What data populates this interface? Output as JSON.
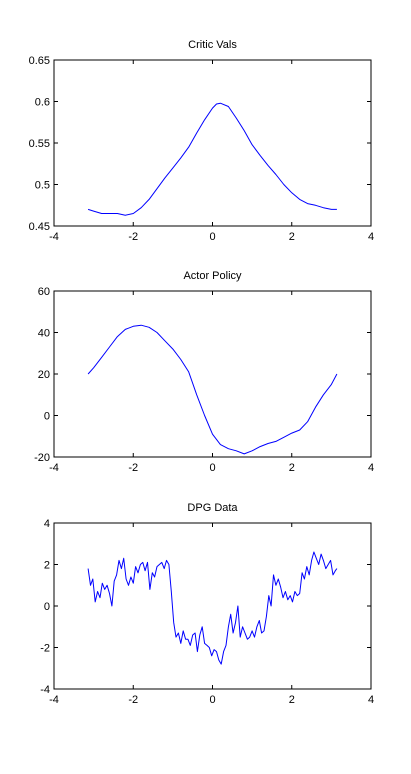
{
  "chart_data": [
    {
      "type": "line",
      "title": "Critic Vals",
      "xlim": [
        -4,
        4
      ],
      "ylim": [
        0.45,
        0.65
      ],
      "xticks": [
        -4,
        -2,
        0,
        2,
        4
      ],
      "xtick_labels": [
        "-4",
        "-2",
        "0",
        "2",
        "4"
      ],
      "yticks": [
        0.45,
        0.5,
        0.55,
        0.6,
        0.65
      ],
      "ytick_labels": [
        "0.45",
        "0.5",
        "0.55",
        "0.6",
        "0.65"
      ],
      "grid": false,
      "color": "#0000ff",
      "series": [
        {
          "x": [
            -3.14,
            -3.0,
            -2.8,
            -2.6,
            -2.4,
            -2.2,
            -2.0,
            -1.8,
            -1.6,
            -1.4,
            -1.2,
            -1.0,
            -0.8,
            -0.6,
            -0.4,
            -0.2,
            0.0,
            0.1,
            0.2,
            0.4,
            0.6,
            0.8,
            1.0,
            1.2,
            1.4,
            1.6,
            1.8,
            2.0,
            2.2,
            2.4,
            2.6,
            2.8,
            3.0,
            3.14
          ],
          "y": [
            0.47,
            0.468,
            0.465,
            0.465,
            0.465,
            0.463,
            0.465,
            0.472,
            0.482,
            0.495,
            0.508,
            0.52,
            0.532,
            0.545,
            0.562,
            0.578,
            0.592,
            0.597,
            0.598,
            0.594,
            0.58,
            0.565,
            0.548,
            0.535,
            0.523,
            0.512,
            0.5,
            0.49,
            0.482,
            0.477,
            0.475,
            0.472,
            0.47,
            0.47
          ]
        }
      ]
    },
    {
      "type": "line",
      "title": "Actor Policy",
      "xlim": [
        -4,
        4
      ],
      "ylim": [
        -20,
        60
      ],
      "xticks": [
        -4,
        -2,
        0,
        2,
        4
      ],
      "xtick_labels": [
        "-4",
        "-2",
        "0",
        "2",
        "4"
      ],
      "yticks": [
        -20,
        0,
        20,
        40,
        60
      ],
      "ytick_labels": [
        "-20",
        "0",
        "20",
        "40",
        "60"
      ],
      "grid": false,
      "color": "#0000ff",
      "series": [
        {
          "x": [
            -3.14,
            -3.0,
            -2.8,
            -2.6,
            -2.4,
            -2.2,
            -2.0,
            -1.8,
            -1.6,
            -1.4,
            -1.2,
            -1.0,
            -0.8,
            -0.6,
            -0.4,
            -0.2,
            0.0,
            0.2,
            0.4,
            0.6,
            0.8,
            1.0,
            1.2,
            1.4,
            1.6,
            1.8,
            2.0,
            2.2,
            2.4,
            2.6,
            2.8,
            3.0,
            3.14
          ],
          "y": [
            20,
            23,
            28,
            33,
            38,
            41.5,
            43,
            43.5,
            42.5,
            40,
            36,
            32,
            27,
            21,
            10,
            0,
            -9,
            -14,
            -16,
            -17,
            -18.5,
            -17,
            -15,
            -13.5,
            -12.5,
            -10.5,
            -8.5,
            -7,
            -3,
            4,
            10,
            15,
            20
          ]
        }
      ]
    },
    {
      "type": "line",
      "title": "DPG Data",
      "xlim": [
        -4,
        4
      ],
      "ylim": [
        -4,
        4
      ],
      "xticks": [
        -4,
        -2,
        0,
        2,
        4
      ],
      "xtick_labels": [
        "-4",
        "-2",
        "0",
        "2",
        "4"
      ],
      "yticks": [
        -4,
        -2,
        0,
        2,
        4
      ],
      "ytick_labels": [
        "-4",
        "-2",
        "0",
        "2",
        "4"
      ],
      "grid": false,
      "color": "#0000ff",
      "series": [
        {
          "x": [
            -3.14,
            -3.08,
            -3.02,
            -2.96,
            -2.9,
            -2.84,
            -2.78,
            -2.72,
            -2.66,
            -2.6,
            -2.54,
            -2.48,
            -2.42,
            -2.36,
            -2.3,
            -2.24,
            -2.18,
            -2.12,
            -2.06,
            -2.0,
            -1.94,
            -1.88,
            -1.82,
            -1.76,
            -1.7,
            -1.64,
            -1.58,
            -1.52,
            -1.46,
            -1.4,
            -1.34,
            -1.28,
            -1.22,
            -1.16,
            -1.1,
            -1.04,
            -0.98,
            -0.92,
            -0.86,
            -0.8,
            -0.74,
            -0.68,
            -0.62,
            -0.56,
            -0.5,
            -0.44,
            -0.38,
            -0.32,
            -0.26,
            -0.2,
            -0.14,
            -0.08,
            -0.02,
            0.04,
            0.1,
            0.16,
            0.22,
            0.28,
            0.34,
            0.4,
            0.46,
            0.52,
            0.58,
            0.64,
            0.7,
            0.76,
            0.82,
            0.88,
            0.94,
            1.0,
            1.06,
            1.12,
            1.18,
            1.24,
            1.3,
            1.36,
            1.42,
            1.48,
            1.54,
            1.6,
            1.66,
            1.72,
            1.78,
            1.84,
            1.9,
            1.96,
            2.02,
            2.08,
            2.14,
            2.2,
            2.26,
            2.32,
            2.38,
            2.44,
            2.5,
            2.56,
            2.62,
            2.68,
            2.74,
            2.8,
            2.86,
            2.92,
            2.98,
            3.04,
            3.1,
            3.14
          ],
          "y": [
            1.8,
            1.0,
            1.3,
            0.2,
            0.7,
            0.4,
            1.1,
            0.8,
            1.0,
            0.6,
            0.0,
            1.2,
            1.5,
            2.2,
            1.8,
            2.3,
            1.3,
            1.0,
            1.4,
            1.1,
            1.9,
            1.6,
            2.0,
            2.1,
            1.7,
            2.1,
            0.8,
            1.6,
            1.4,
            1.9,
            2.0,
            2.1,
            1.8,
            2.2,
            2.0,
            0.7,
            -0.8,
            -1.5,
            -1.3,
            -1.8,
            -1.2,
            -1.6,
            -1.6,
            -1.9,
            -1.4,
            -1.3,
            -2.2,
            -1.4,
            -1.0,
            -1.8,
            -1.9,
            -2.0,
            -2.4,
            -2.1,
            -2.2,
            -2.6,
            -2.8,
            -2.2,
            -1.9,
            -1.0,
            -0.4,
            -1.3,
            -0.8,
            0.0,
            -1.5,
            -1.0,
            -1.3,
            -1.6,
            -1.5,
            -1.2,
            -1.5,
            -1.0,
            -0.7,
            -1.3,
            -1.2,
            -0.5,
            0.5,
            0.0,
            1.5,
            1.0,
            1.3,
            0.9,
            0.4,
            0.7,
            0.3,
            0.5,
            0.2,
            0.7,
            0.5,
            0.6,
            1.6,
            1.3,
            1.9,
            1.5,
            2.2,
            2.6,
            2.3,
            2.0,
            2.5,
            2.2,
            1.8,
            2.0,
            2.2,
            1.5,
            1.7,
            1.8
          ]
        }
      ]
    }
  ]
}
